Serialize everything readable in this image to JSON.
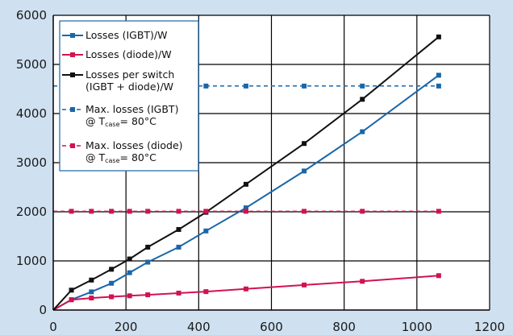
{
  "chart_data": {
    "type": "line",
    "title": "",
    "xlabel": "",
    "ylabel": "",
    "xlim": [
      0,
      1200
    ],
    "ylim": [
      0,
      6000
    ],
    "x_ticks": [
      0,
      200,
      400,
      600,
      800,
      1000,
      1200
    ],
    "y_ticks": [
      0,
      1000,
      2000,
      3000,
      4000,
      5000,
      6000
    ],
    "grid": true,
    "legend_position": "top-left",
    "series": [
      {
        "name": "Losses (IGBT)/W",
        "color": "#1a66a8",
        "style": "solid",
        "x": [
          0,
          50,
          105,
          160,
          210,
          260,
          345,
          420,
          530,
          690,
          850,
          1060
        ],
        "y": [
          0,
          210,
          370,
          545,
          760,
          975,
          1280,
          1610,
          2080,
          2830,
          3630,
          4780
        ]
      },
      {
        "name": "Losses (diode)/W",
        "color": "#d1134f",
        "style": "solid",
        "x": [
          0,
          50,
          105,
          160,
          210,
          260,
          345,
          420,
          530,
          690,
          850,
          1060
        ],
        "y": [
          0,
          210,
          245,
          270,
          290,
          310,
          345,
          375,
          430,
          510,
          585,
          700
        ]
      },
      {
        "name": "Losses per switch (IGBT + diode)/W",
        "name_lines": [
          "Losses per switch",
          "(IGBT + diode)/W"
        ],
        "color": "#111111",
        "style": "solid",
        "x": [
          0,
          50,
          105,
          160,
          210,
          260,
          345,
          420,
          530,
          690,
          850,
          1060
        ],
        "y": [
          0,
          405,
          610,
          830,
          1040,
          1280,
          1640,
          1990,
          2560,
          3390,
          4290,
          5560
        ]
      },
      {
        "name": "Max. losses (IGBT) @ Tcase= 80°C",
        "name_lines": [
          "Max. losses (IGBT)",
          "@ T",
          "case",
          "= 80°C"
        ],
        "color": "#1a66a8",
        "style": "dashed",
        "x": [
          0,
          50,
          105,
          160,
          210,
          260,
          345,
          420,
          530,
          690,
          850,
          1060
        ],
        "y": [
          4560,
          4560,
          4560,
          4560,
          4560,
          4560,
          4560,
          4560,
          4560,
          4560,
          4560,
          4560
        ]
      },
      {
        "name": "Max. losses (diode) @ Tcase= 80°C",
        "name_lines": [
          "Max. losses (diode)",
          "@ T",
          "case",
          "= 80°C"
        ],
        "color": "#d1134f",
        "style": "dashed",
        "x": [
          0,
          50,
          105,
          160,
          210,
          260,
          345,
          420,
          530,
          690,
          850,
          1060
        ],
        "y": [
          2010,
          2010,
          2010,
          2010,
          2010,
          2010,
          2010,
          2010,
          2010,
          2010,
          2010,
          2010
        ]
      }
    ]
  }
}
